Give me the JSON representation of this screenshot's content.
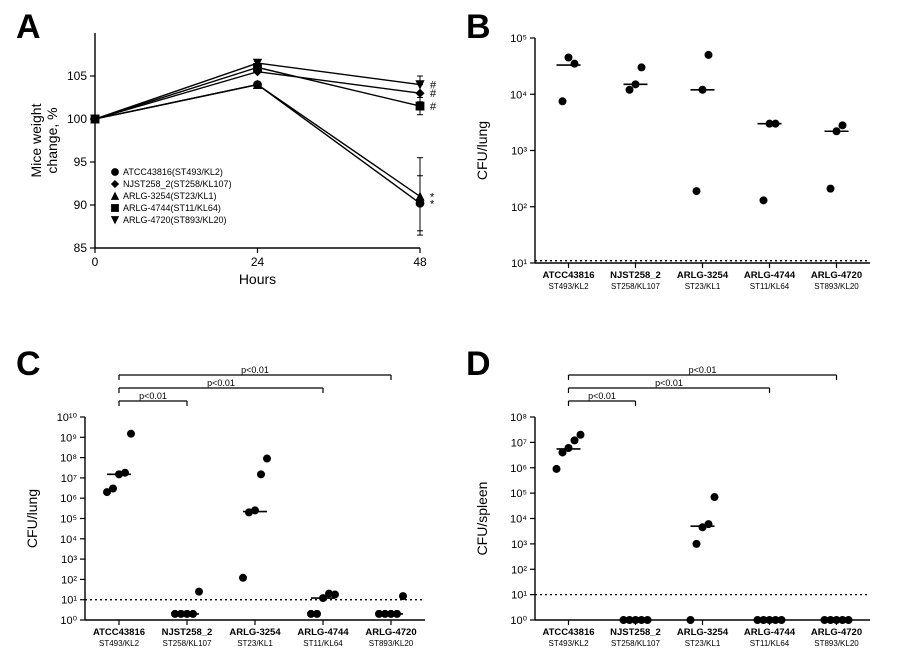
{
  "figure": {
    "background_color": "#ffffff",
    "foreground_color": "#000000",
    "panel_label_fontsize": 34,
    "axis_fontsize": 13,
    "tick_fontsize": 11,
    "category_fontsize": 9
  },
  "strains": [
    {
      "name": "ATCC43816",
      "st": "ST493/KL2"
    },
    {
      "name": "NJST258_2",
      "st": "ST258/KL107"
    },
    {
      "name": "ARLG-3254",
      "st": "ST23/KL1"
    },
    {
      "name": "ARLG-4744",
      "st": "ST11/KL64"
    },
    {
      "name": "ARLG-4720",
      "st": "ST893/KL20"
    }
  ],
  "panelA": {
    "label": "A",
    "type": "line",
    "xlabel": "Hours",
    "ylabel": "Mice weight\nchange, %",
    "xlim": [
      0,
      48
    ],
    "xticks": [
      0,
      24,
      48
    ],
    "ylim": [
      85,
      100
    ],
    "yticks": [
      85,
      90,
      95,
      100,
      105
    ],
    "ytick_labels": [
      "85",
      "90",
      "95",
      "100",
      "105"
    ],
    "series": [
      {
        "name": "ATCC43816(ST493/KL2)",
        "marker": "circle",
        "color": "#000000",
        "x": [
          0,
          24,
          48
        ],
        "y": [
          100,
          104,
          90.2
        ],
        "err48": 3.2,
        "annot": "*"
      },
      {
        "name": "NJST258_2(ST258/KL107)",
        "marker": "diamond",
        "color": "#000000",
        "x": [
          0,
          24,
          48
        ],
        "y": [
          100,
          105.5,
          103
        ],
        "err48": 1.0,
        "annot": "#"
      },
      {
        "name": "ARLG-3254(ST23/KL1)",
        "marker": "triangle",
        "color": "#000000",
        "x": [
          0,
          24,
          48
        ],
        "y": [
          100,
          104,
          91
        ],
        "err48": 4.5,
        "annot": "*"
      },
      {
        "name": "ARLG-4744(ST11/KL64)",
        "marker": "square",
        "color": "#000000",
        "x": [
          0,
          24,
          48
        ],
        "y": [
          100,
          106,
          101.5
        ],
        "err48": 1.0,
        "annot": "#"
      },
      {
        "name": "ARLG-4720(ST893/KL20)",
        "marker": "triangle-down",
        "color": "#000000",
        "x": [
          0,
          24,
          48
        ],
        "y": [
          100,
          106.5,
          104
        ],
        "err48": 1.0,
        "annot": "#"
      }
    ]
  },
  "panelB": {
    "label": "B",
    "type": "scatter",
    "xlabel": "",
    "ylabel": "CFU/lung",
    "yscale": "log",
    "ylim": [
      10,
      100000
    ],
    "yticks": [
      10,
      100,
      1000,
      10000,
      100000
    ],
    "ytick_labels": [
      "10¹",
      "10²",
      "10³",
      "10⁴",
      "10⁵"
    ],
    "ref_line": 11,
    "data": [
      {
        "strain": "ATCC43816",
        "points": [
          7500,
          45000,
          35000
        ],
        "median": 33000
      },
      {
        "strain": "NJST258_2",
        "points": [
          12000,
          15000,
          30000
        ],
        "median": 15000
      },
      {
        "strain": "ARLG-3254",
        "points": [
          190,
          12000,
          50000
        ],
        "median": 12000
      },
      {
        "strain": "ARLG-4744",
        "points": [
          130,
          3000,
          3000
        ],
        "median": 3000
      },
      {
        "strain": "ARLG-4720",
        "points": [
          210,
          2200,
          2800
        ],
        "median": 2200
      }
    ]
  },
  "panelC": {
    "label": "C",
    "type": "scatter",
    "xlabel": "",
    "ylabel": "CFU/lung",
    "yscale": "log",
    "ylim": [
      1,
      10000000000
    ],
    "yticks": [
      1,
      10,
      100,
      1000,
      10000,
      100000,
      1000000,
      10000000,
      100000000,
      1000000000,
      10000000000
    ],
    "ytick_labels": [
      "10⁰",
      "10¹",
      "10²",
      "10³",
      "10⁴",
      "10⁵",
      "10⁶",
      "10⁷",
      "10⁸",
      "10⁹",
      "10¹⁰"
    ],
    "ref_line": 10,
    "stats": [
      {
        "from": 0,
        "to": 1,
        "label": "p<0.01"
      },
      {
        "from": 0,
        "to": 3,
        "label": "p<0.01"
      },
      {
        "from": 0,
        "to": 4,
        "label": "p<0.01"
      }
    ],
    "data": [
      {
        "strain": "ATCC43816",
        "points": [
          2000000,
          3000000,
          15000000,
          18000000,
          1500000000
        ],
        "median": 15000000
      },
      {
        "strain": "NJST258_2",
        "points": [
          2,
          2,
          2,
          2,
          25
        ],
        "median": 2
      },
      {
        "strain": "ARLG-3254",
        "points": [
          120,
          200000,
          250000,
          15000000,
          90000000
        ],
        "median": 220000
      },
      {
        "strain": "ARLG-4744",
        "points": [
          2,
          2,
          12,
          20,
          18
        ],
        "median": 12
      },
      {
        "strain": "ARLG-4720",
        "points": [
          2,
          2,
          2,
          2,
          15
        ],
        "median": 2
      }
    ]
  },
  "panelD": {
    "label": "D",
    "type": "scatter",
    "xlabel": "",
    "ylabel": "CFU/spleen",
    "yscale": "log",
    "ylim": [
      1,
      100000000
    ],
    "yticks": [
      1,
      10,
      100,
      1000,
      10000,
      100000,
      1000000,
      10000000,
      100000000
    ],
    "ytick_labels": [
      "10⁰",
      "10¹",
      "10²",
      "10³",
      "10⁴",
      "10⁵",
      "10⁶",
      "10⁷",
      "10⁸"
    ],
    "ref_line": 10,
    "stats": [
      {
        "from": 0,
        "to": 1,
        "label": "p<0.01"
      },
      {
        "from": 0,
        "to": 3,
        "label": "p<0.01"
      },
      {
        "from": 0,
        "to": 4,
        "label": "p<0.01"
      }
    ],
    "data": [
      {
        "strain": "ATCC43816",
        "points": [
          900000,
          4000000,
          6000000,
          12000000,
          20000000
        ],
        "median": 5500000
      },
      {
        "strain": "NJST258_2",
        "points": [
          1,
          1,
          1,
          1,
          1
        ],
        "median": 1
      },
      {
        "strain": "ARLG-3254",
        "points": [
          1,
          1000,
          4500,
          6000,
          70000
        ],
        "median": 5000
      },
      {
        "strain": "ARLG-4744",
        "points": [
          1,
          1,
          1,
          1,
          1
        ],
        "median": 1
      },
      {
        "strain": "ARLG-4720",
        "points": [
          1,
          1,
          1,
          1,
          1
        ],
        "median": 1
      }
    ]
  }
}
